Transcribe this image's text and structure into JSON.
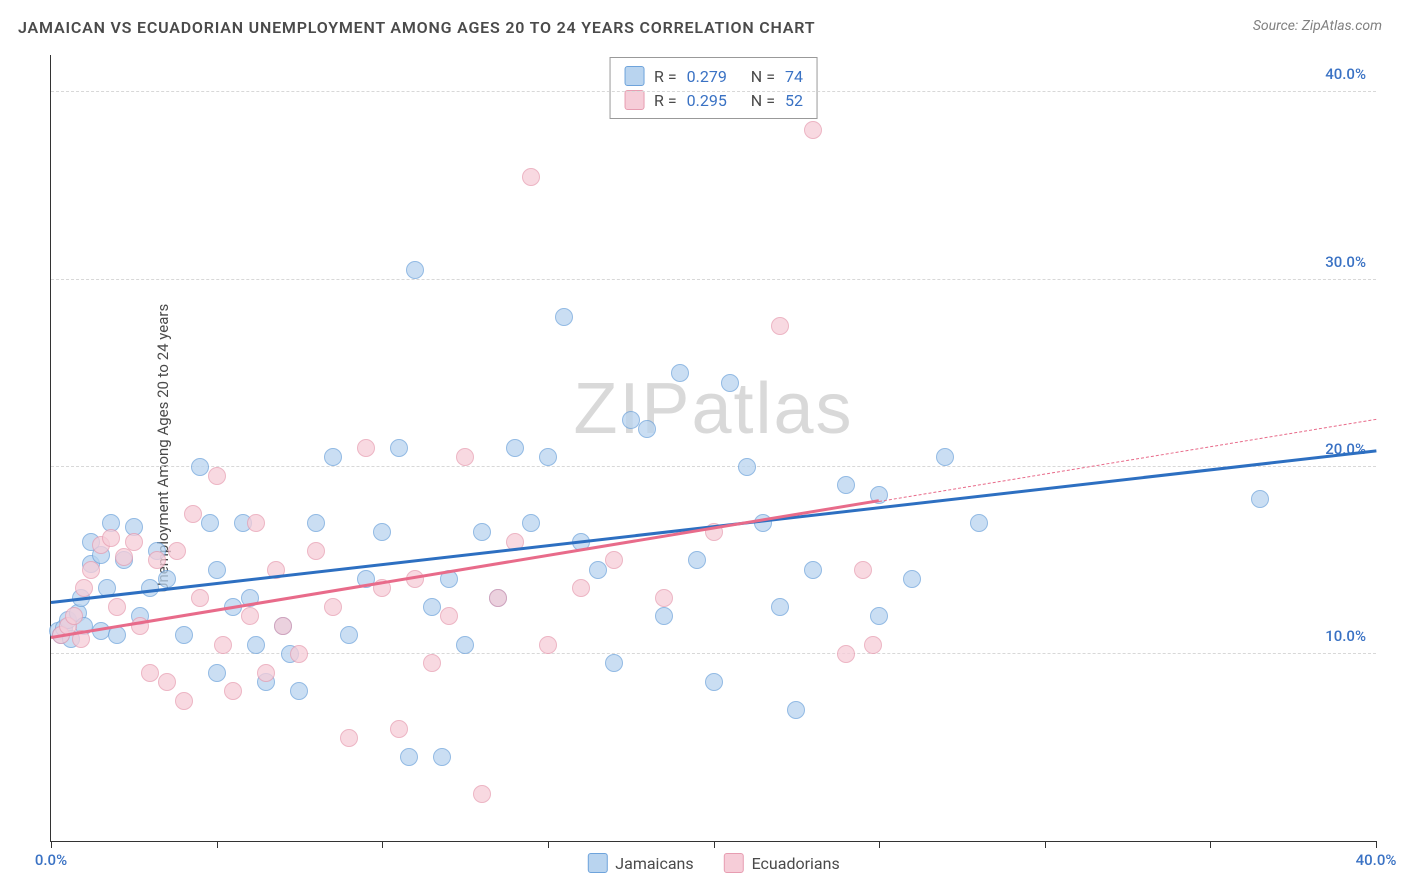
{
  "title": "JAMAICAN VS ECUADORIAN UNEMPLOYMENT AMONG AGES 20 TO 24 YEARS CORRELATION CHART",
  "source_label": "Source: ZipAtlas.com",
  "watermark": "ZIPatlas",
  "y_axis_label": "Unemployment Among Ages 20 to 24 years",
  "chart": {
    "type": "scatter",
    "xlim": [
      0,
      40
    ],
    "ylim": [
      0,
      42
    ],
    "x_ticks": [
      0,
      5,
      10,
      15,
      20,
      25,
      30,
      35,
      40
    ],
    "x_tick_labels": {
      "0": "0.0%",
      "40": "40.0%"
    },
    "y_ticks": [
      10,
      20,
      30,
      40
    ],
    "y_tick_labels": {
      "10": "10.0%",
      "20": "20.0%",
      "30": "30.0%",
      "40": "40.0%"
    },
    "background_color": "#ffffff",
    "grid_color": "#d8d8d8",
    "x_tick_label_color": "#3a72c4",
    "y_tick_label_color": "#3a72c4",
    "title_color": "#4a4a4a",
    "title_fontsize": 16,
    "axis_label_fontsize": 15,
    "tick_label_fontsize": 15,
    "point_radius": 9,
    "point_opacity": 0.75
  },
  "series": [
    {
      "name": "Jamaicans",
      "fill_color": "#b9d4ef",
      "stroke_color": "#6ea3db",
      "trend_color": "#2d6fc1",
      "trend_width": 2.5,
      "R": "0.279",
      "N": "74",
      "trend": {
        "x1": 0,
        "y1": 12.7,
        "x2": 40,
        "y2": 20.8,
        "dashed_from_x": null
      },
      "points": [
        [
          0.2,
          11.2
        ],
        [
          0.3,
          11.0
        ],
        [
          0.4,
          11.4
        ],
        [
          0.5,
          11.8
        ],
        [
          0.6,
          10.8
        ],
        [
          0.8,
          12.2
        ],
        [
          0.9,
          13.0
        ],
        [
          1.0,
          11.5
        ],
        [
          1.2,
          16.0
        ],
        [
          1.2,
          14.8
        ],
        [
          1.5,
          15.3
        ],
        [
          1.5,
          11.2
        ],
        [
          1.7,
          13.5
        ],
        [
          1.8,
          17.0
        ],
        [
          2.0,
          11.0
        ],
        [
          2.2,
          15.0
        ],
        [
          2.5,
          16.8
        ],
        [
          2.7,
          12.0
        ],
        [
          3.0,
          13.5
        ],
        [
          3.2,
          15.5
        ],
        [
          3.5,
          14.0
        ],
        [
          4.0,
          11.0
        ],
        [
          4.5,
          20.0
        ],
        [
          4.8,
          17.0
        ],
        [
          5.0,
          14.5
        ],
        [
          5.0,
          9.0
        ],
        [
          5.5,
          12.5
        ],
        [
          5.8,
          17.0
        ],
        [
          6.0,
          13.0
        ],
        [
          6.2,
          10.5
        ],
        [
          6.5,
          8.5
        ],
        [
          7.0,
          11.5
        ],
        [
          7.2,
          10.0
        ],
        [
          7.5,
          8.0
        ],
        [
          8.0,
          17.0
        ],
        [
          8.5,
          20.5
        ],
        [
          9.0,
          11.0
        ],
        [
          9.5,
          14.0
        ],
        [
          10.0,
          16.5
        ],
        [
          10.5,
          21.0
        ],
        [
          10.8,
          4.5
        ],
        [
          11.0,
          30.5
        ],
        [
          11.5,
          12.5
        ],
        [
          11.8,
          4.5
        ],
        [
          12.0,
          14.0
        ],
        [
          12.5,
          10.5
        ],
        [
          13.0,
          16.5
        ],
        [
          13.5,
          13.0
        ],
        [
          14.0,
          21.0
        ],
        [
          14.5,
          17.0
        ],
        [
          15.0,
          20.5
        ],
        [
          15.5,
          28.0
        ],
        [
          16.0,
          16.0
        ],
        [
          16.5,
          14.5
        ],
        [
          17.0,
          9.5
        ],
        [
          17.5,
          22.5
        ],
        [
          18.0,
          22.0
        ],
        [
          18.5,
          12.0
        ],
        [
          19.0,
          25.0
        ],
        [
          19.5,
          15.0
        ],
        [
          20.0,
          8.5
        ],
        [
          20.5,
          24.5
        ],
        [
          21.0,
          20.0
        ],
        [
          21.5,
          17.0
        ],
        [
          22.0,
          12.5
        ],
        [
          22.5,
          7.0
        ],
        [
          23.0,
          14.5
        ],
        [
          24.0,
          19.0
        ],
        [
          25.0,
          12.0
        ],
        [
          26.0,
          14.0
        ],
        [
          27.0,
          20.5
        ],
        [
          28.0,
          17.0
        ],
        [
          36.5,
          18.3
        ],
        [
          25.0,
          18.5
        ]
      ]
    },
    {
      "name": "Ecuadorians",
      "fill_color": "#f6cdd8",
      "stroke_color": "#e79db1",
      "trend_color": "#e86b8a",
      "trend_width": 2.5,
      "R": "0.295",
      "N": "52",
      "trend": {
        "x1": 0,
        "y1": 10.8,
        "x2": 40,
        "y2": 22.5,
        "dashed_from_x": 25
      },
      "points": [
        [
          0.3,
          11.0
        ],
        [
          0.5,
          11.5
        ],
        [
          0.7,
          12.0
        ],
        [
          0.9,
          10.8
        ],
        [
          1.0,
          13.5
        ],
        [
          1.2,
          14.5
        ],
        [
          1.5,
          15.8
        ],
        [
          1.8,
          16.2
        ],
        [
          2.0,
          12.5
        ],
        [
          2.2,
          15.2
        ],
        [
          2.5,
          16.0
        ],
        [
          2.7,
          11.5
        ],
        [
          3.0,
          9.0
        ],
        [
          3.2,
          15.0
        ],
        [
          3.5,
          8.5
        ],
        [
          3.8,
          15.5
        ],
        [
          4.0,
          7.5
        ],
        [
          4.3,
          17.5
        ],
        [
          4.5,
          13.0
        ],
        [
          5.0,
          19.5
        ],
        [
          5.2,
          10.5
        ],
        [
          5.5,
          8.0
        ],
        [
          6.0,
          12.0
        ],
        [
          6.2,
          17.0
        ],
        [
          6.5,
          9.0
        ],
        [
          6.8,
          14.5
        ],
        [
          7.0,
          11.5
        ],
        [
          7.5,
          10.0
        ],
        [
          8.0,
          15.5
        ],
        [
          8.5,
          12.5
        ],
        [
          9.0,
          5.5
        ],
        [
          9.5,
          21.0
        ],
        [
          10.0,
          13.5
        ],
        [
          10.5,
          6.0
        ],
        [
          11.0,
          14.0
        ],
        [
          11.5,
          9.5
        ],
        [
          12.0,
          12.0
        ],
        [
          12.5,
          20.5
        ],
        [
          13.0,
          2.5
        ],
        [
          13.5,
          13.0
        ],
        [
          14.0,
          16.0
        ],
        [
          14.5,
          35.5
        ],
        [
          15.0,
          10.5
        ],
        [
          16.0,
          13.5
        ],
        [
          17.0,
          15.0
        ],
        [
          18.5,
          13.0
        ],
        [
          20.0,
          16.5
        ],
        [
          22.0,
          27.5
        ],
        [
          23.0,
          38.0
        ],
        [
          24.0,
          10.0
        ],
        [
          24.5,
          14.5
        ],
        [
          24.8,
          10.5
        ]
      ]
    }
  ],
  "stats_box": {
    "label_R": "R =",
    "label_N": "N =",
    "value_color": "#3a72c4"
  },
  "legend": {
    "position": "bottom-center"
  }
}
